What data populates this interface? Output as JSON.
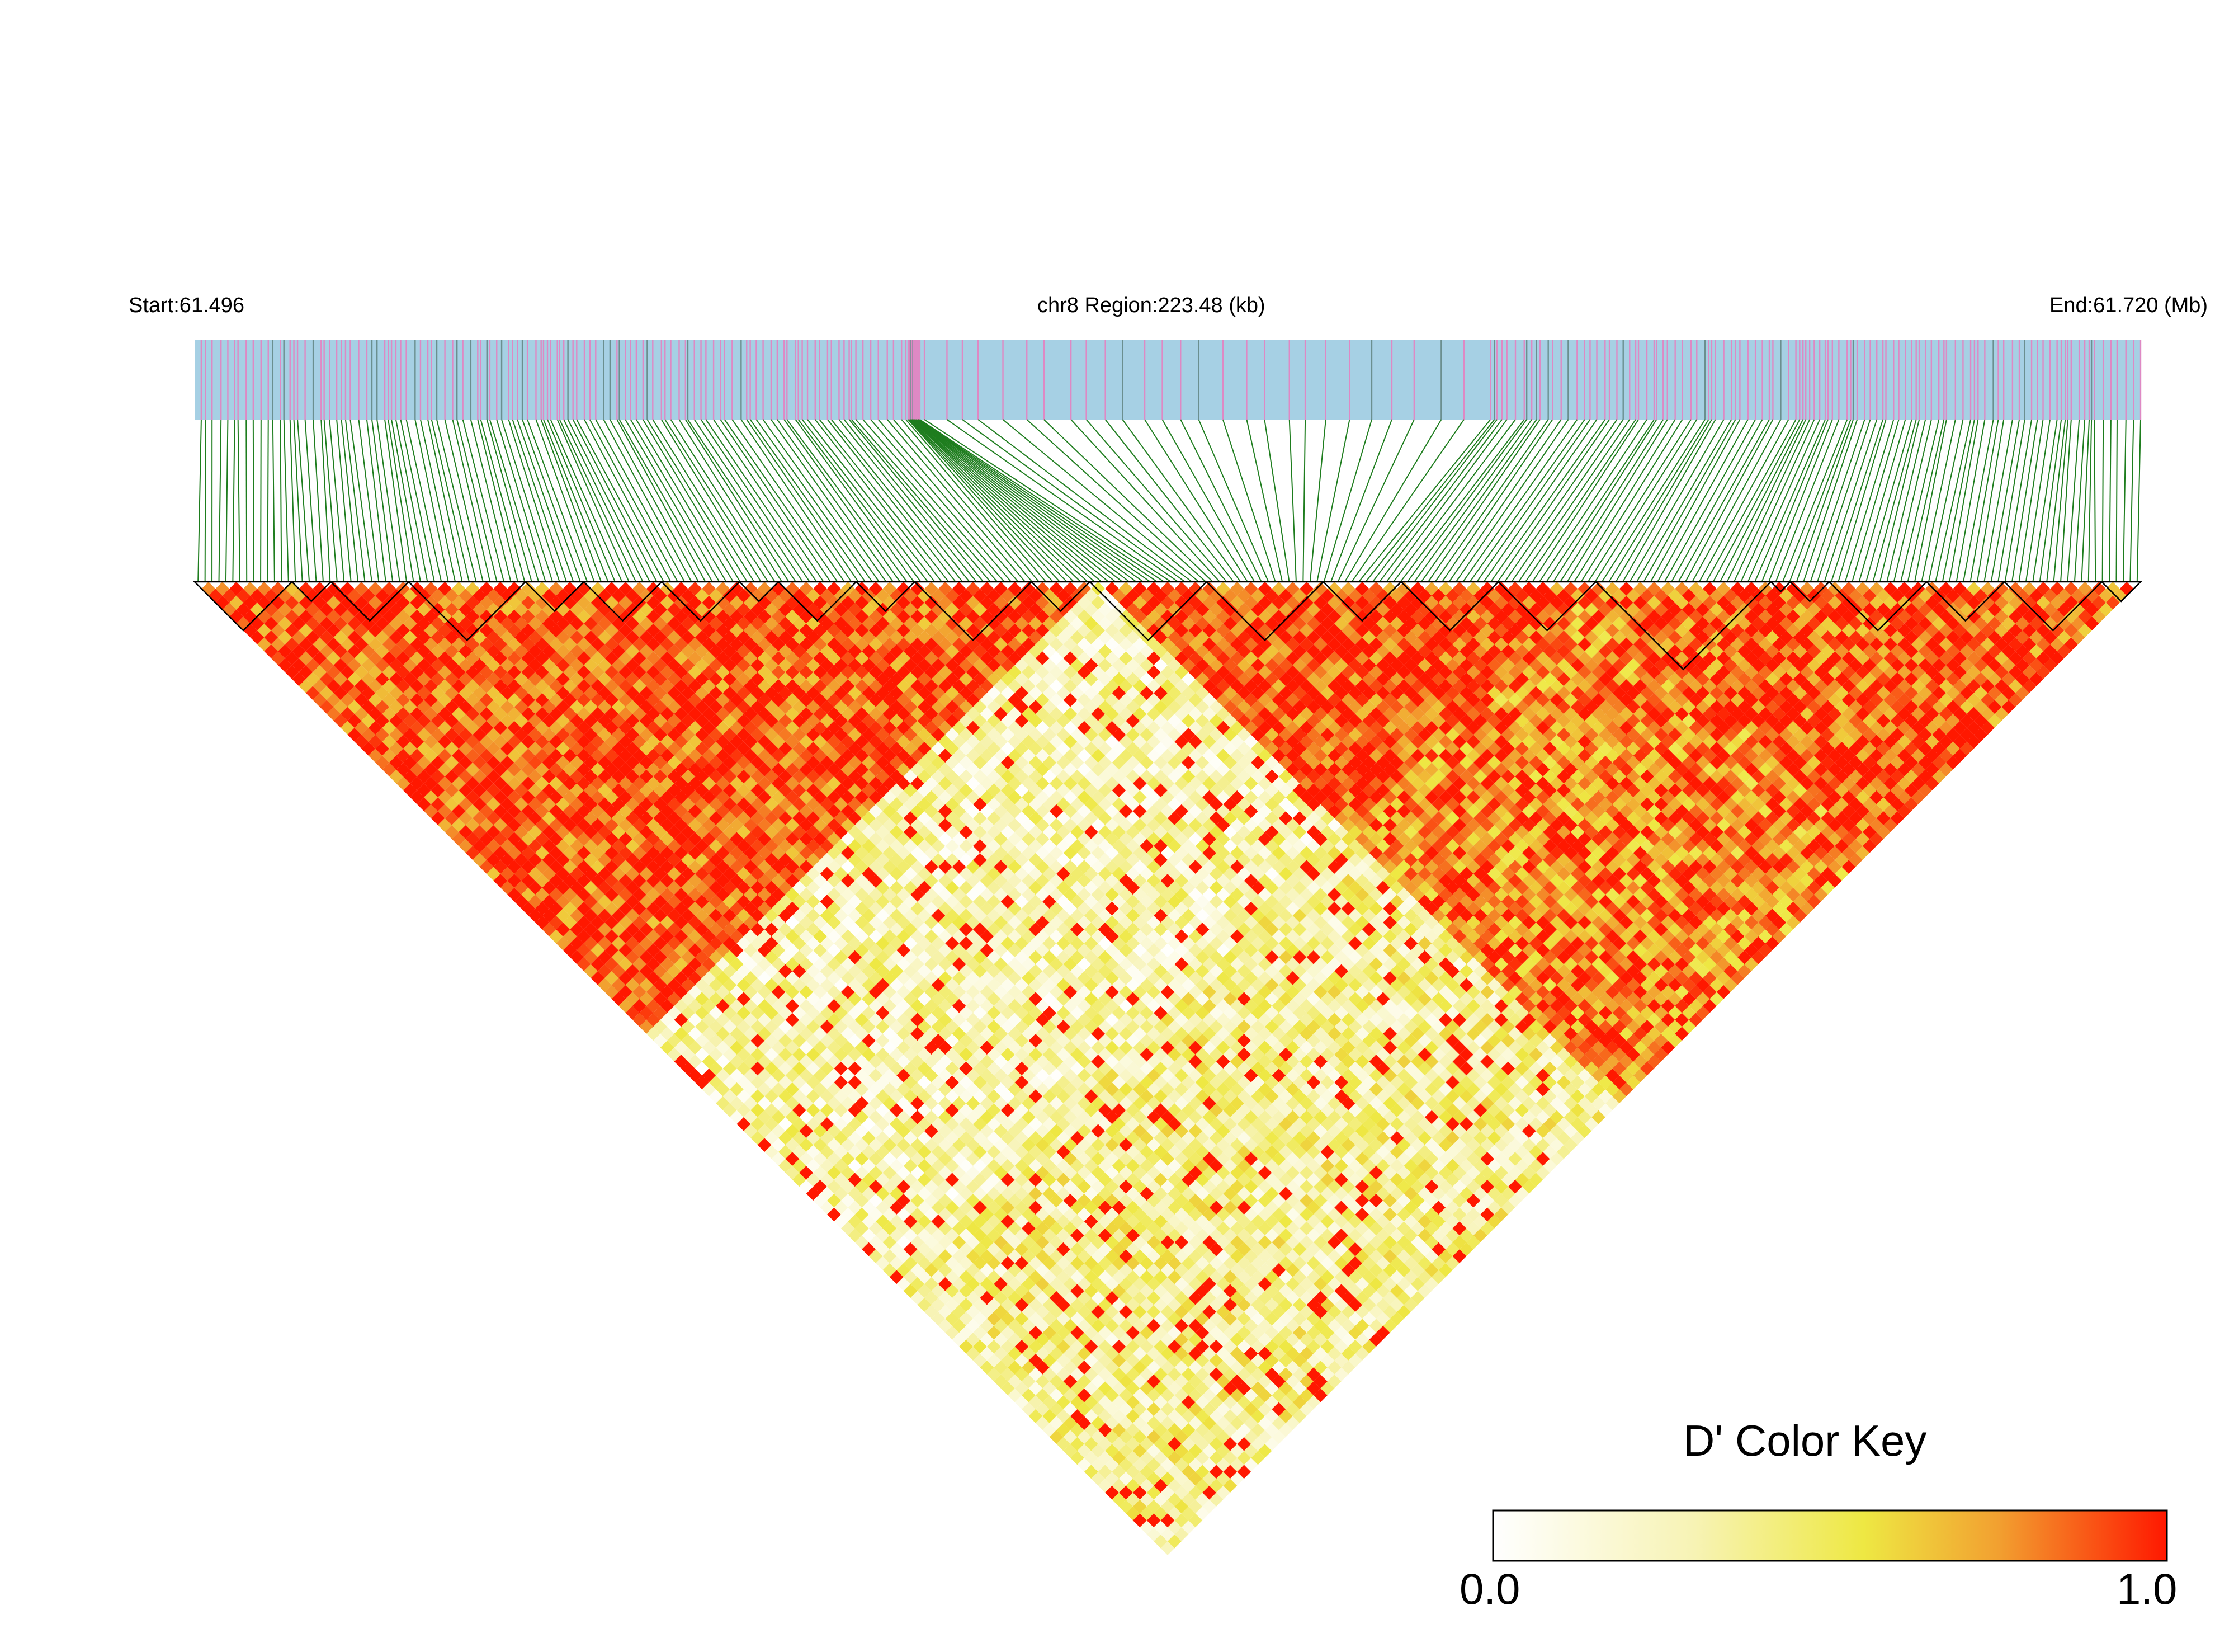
{
  "header": {
    "start_label": "Start:61.496",
    "region_label": "chr8 Region:223.48 (kb)",
    "end_label": "End:61.720 (Mb)"
  },
  "colors": {
    "track_bg": "#a6d0e4",
    "snp_mark": "#de89c4",
    "snp_mark_dark": "#6b8f8f",
    "connector_line": "#1e7d1e",
    "block_outline": "#000000",
    "ld_high": "#ff1800",
    "ld_mid": "#eee843",
    "ld_low": "#ffffff"
  },
  "legend": {
    "title": "D' Color Key",
    "min_label": "0.0",
    "max_label": "1.0",
    "gradient": [
      "#ffffff",
      "#f7f3b4",
      "#eee843",
      "#f2a030",
      "#ff1800"
    ]
  },
  "chart_data": {
    "type": "heatmap",
    "metric": "D'",
    "chromosome": "chr8",
    "region_start_mb": 61.496,
    "region_end_mb": 61.72,
    "region_length_kb": 223.48,
    "value_range": [
      0.0,
      1.0
    ],
    "approx_snp_count": 280,
    "ld_structure": [
      {
        "snp_fraction_from": 0.0,
        "snp_fraction_to": 0.46,
        "mean_D_prime": 0.9
      },
      {
        "snp_fraction_from": 0.46,
        "snp_fraction_to": 0.72,
        "mean_D_prime": 0.92
      },
      {
        "snp_fraction_from": 0.72,
        "snp_fraction_to": 1.0,
        "mean_D_prime": 0.88
      },
      {
        "between": "left-block vs middle-block",
        "mean_D_prime": 0.28
      },
      {
        "between": "left-block vs right-block",
        "mean_D_prime": 0.35
      },
      {
        "between": "middle-block vs right-block",
        "mean_D_prime": 0.78
      }
    ],
    "haplotype_blocks_snp_fraction": [
      [
        0.0,
        0.05
      ],
      [
        0.05,
        0.07
      ],
      [
        0.07,
        0.11
      ],
      [
        0.11,
        0.17
      ],
      [
        0.17,
        0.2
      ],
      [
        0.2,
        0.24
      ],
      [
        0.24,
        0.28
      ],
      [
        0.28,
        0.3
      ],
      [
        0.3,
        0.34
      ],
      [
        0.34,
        0.37
      ],
      [
        0.37,
        0.43
      ],
      [
        0.43,
        0.46
      ],
      [
        0.46,
        0.52
      ],
      [
        0.52,
        0.58
      ],
      [
        0.58,
        0.62
      ],
      [
        0.62,
        0.67
      ],
      [
        0.67,
        0.72
      ],
      [
        0.72,
        0.81
      ],
      [
        0.81,
        0.82
      ],
      [
        0.82,
        0.84
      ],
      [
        0.84,
        0.89
      ],
      [
        0.89,
        0.93
      ],
      [
        0.93,
        0.98
      ],
      [
        0.98,
        1.0
      ]
    ]
  }
}
